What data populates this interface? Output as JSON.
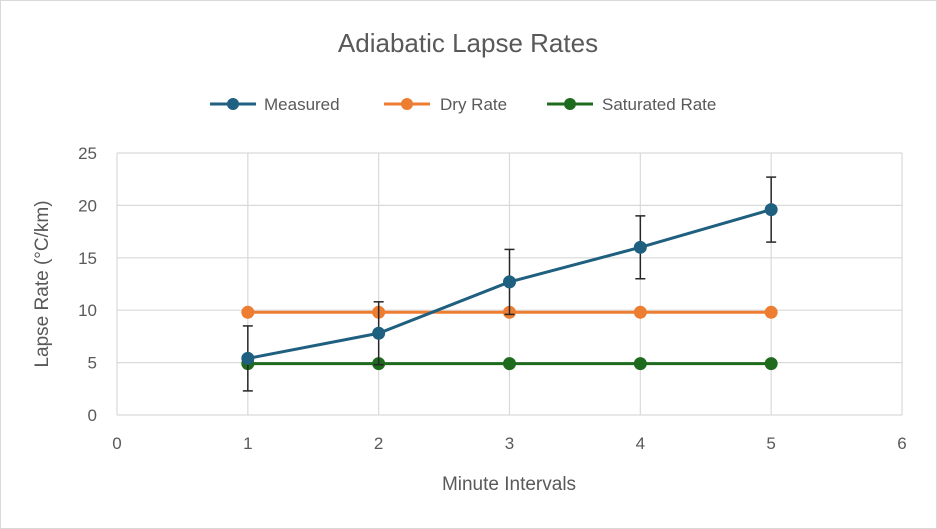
{
  "chart_data": {
    "type": "line",
    "title": "Adiabatic Lapse Rates",
    "xlabel": "Minute Intervals",
    "ylabel": "Lapse Rate (°C/km)",
    "xlim": [
      0,
      6
    ],
    "ylim": [
      0,
      25
    ],
    "x_ticks": [
      0,
      1,
      2,
      3,
      4,
      5,
      6
    ],
    "y_ticks": [
      0,
      5,
      10,
      15,
      20,
      25
    ],
    "grid": true,
    "legend_position": "top",
    "series": [
      {
        "name": "Measured",
        "color": "#1f5f7f",
        "x": [
          1,
          2,
          3,
          4,
          5
        ],
        "y": [
          5.4,
          7.8,
          12.7,
          16.0,
          19.6
        ],
        "error": [
          3.1,
          3.0,
          3.1,
          3.0,
          3.1
        ]
      },
      {
        "name": "Dry Rate",
        "color": "#ed7d31",
        "x": [
          1,
          2,
          3,
          4,
          5
        ],
        "y": [
          9.8,
          9.8,
          9.8,
          9.8,
          9.8
        ]
      },
      {
        "name": "Saturated Rate",
        "color": "#1e6b1e",
        "x": [
          1,
          2,
          3,
          4,
          5
        ],
        "y": [
          4.9,
          4.9,
          4.9,
          4.9,
          4.9
        ]
      }
    ]
  }
}
